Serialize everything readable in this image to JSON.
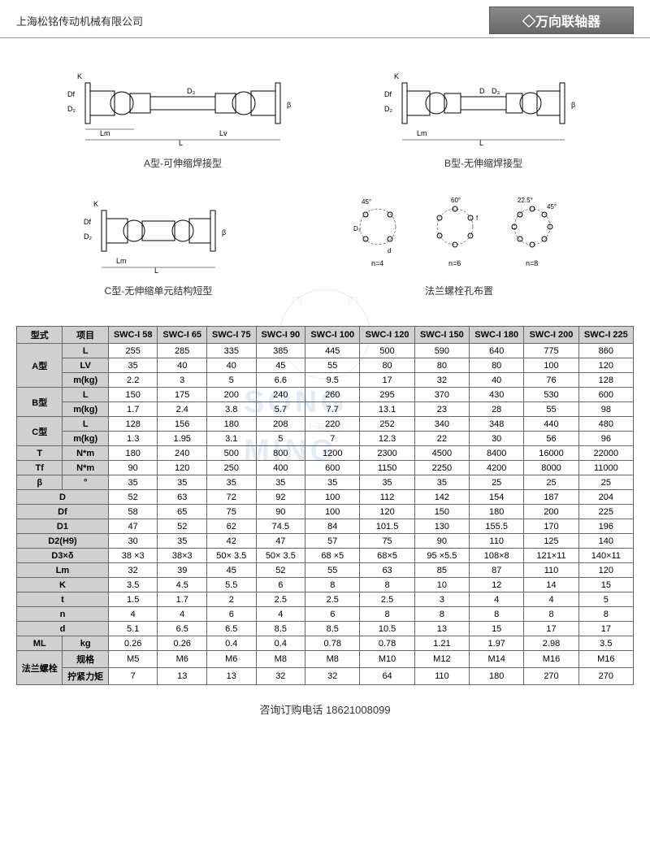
{
  "header": {
    "company": "上海松铭传动机械有限公司",
    "title": "◇万向联轴器"
  },
  "diagrams": {
    "typeA_label": "A型-可伸缩焊接型",
    "typeB_label": "B型-无伸缩焊接型",
    "typeC_label": "C型-无伸缩单元结构短型",
    "bolt_label": "法兰螺栓孔布置",
    "bolt_n4": "n=4",
    "bolt_n6": "n=6",
    "bolt_n8": "n=8",
    "angle_45": "45°",
    "angle_60": "60°",
    "angle_225": "22.5°",
    "dim_K": "K",
    "dim_Df": "Df",
    "dim_D2": "D₂",
    "dim_Lm": "Lm",
    "dim_L": "L",
    "dim_Lv": "Lv",
    "dim_D": "D",
    "dim_D3": "D₃",
    "dim_D1": "D₁",
    "dim_d": "d",
    "dim_beta": "β"
  },
  "watermark": {
    "main": "SONG",
    "main2": "MING",
    "sub": "上海松铭"
  },
  "table": {
    "header_row1": [
      "型式",
      "项目",
      "SWC-I 58",
      "SWC-I 65",
      "SWC-I 75",
      "SWC-I 90",
      "SWC-I 100",
      "SWC-I 120",
      "SWC-I 150",
      "SWC-I 180",
      "SWC-I 200",
      "SWC-I 225"
    ],
    "rows": [
      {
        "group": "A型",
        "param": "L",
        "vals": [
          "255",
          "285",
          "335",
          "385",
          "445",
          "500",
          "590",
          "640",
          "775",
          "860"
        ]
      },
      {
        "group": "",
        "param": "LV",
        "vals": [
          "35",
          "40",
          "40",
          "45",
          "55",
          "80",
          "80",
          "80",
          "100",
          "120"
        ]
      },
      {
        "group": "",
        "param": "m(kg)",
        "vals": [
          "2.2",
          "3",
          "5",
          "6.6",
          "9.5",
          "17",
          "32",
          "40",
          "76",
          "128"
        ]
      },
      {
        "group": "B型",
        "param": "L",
        "vals": [
          "150",
          "175",
          "200",
          "240",
          "260",
          "295",
          "370",
          "430",
          "530",
          "600"
        ]
      },
      {
        "group": "",
        "param": "m(kg)",
        "vals": [
          "1.7",
          "2.4",
          "3.8",
          "5.7",
          "7.7",
          "13.1",
          "23",
          "28",
          "55",
          "98"
        ]
      },
      {
        "group": "C型",
        "param": "L",
        "vals": [
          "128",
          "156",
          "180",
          "208",
          "220",
          "252",
          "340",
          "348",
          "440",
          "480"
        ]
      },
      {
        "group": "",
        "param": "m(kg)",
        "vals": [
          "1.3",
          "1.95",
          "3.1",
          "5",
          "7",
          "12.3",
          "22",
          "30",
          "56",
          "96"
        ]
      },
      {
        "group": "T",
        "param": "N*m",
        "vals": [
          "180",
          "240",
          "500",
          "800",
          "1200",
          "2300",
          "4500",
          "8400",
          "16000",
          "22000"
        ]
      },
      {
        "group": "Tf",
        "param": "N*m",
        "vals": [
          "90",
          "120",
          "250",
          "400",
          "600",
          "1150",
          "2250",
          "4200",
          "8000",
          "11000"
        ]
      },
      {
        "group": "β",
        "param": "°",
        "vals": [
          "35",
          "35",
          "35",
          "35",
          "35",
          "35",
          "35",
          "25",
          "25",
          "25"
        ]
      },
      {
        "group2": "D",
        "vals": [
          "52",
          "63",
          "72",
          "92",
          "100",
          "112",
          "142",
          "154",
          "187",
          "204"
        ]
      },
      {
        "group2": "Df",
        "vals": [
          "58",
          "65",
          "75",
          "90",
          "100",
          "120",
          "150",
          "180",
          "200",
          "225"
        ]
      },
      {
        "group2": "D1",
        "vals": [
          "47",
          "52",
          "62",
          "74.5",
          "84",
          "101.5",
          "130",
          "155.5",
          "170",
          "196"
        ]
      },
      {
        "group2": "D2(H9)",
        "vals": [
          "30",
          "35",
          "42",
          "47",
          "57",
          "75",
          "90",
          "110",
          "125",
          "140"
        ]
      },
      {
        "group2": "D3×δ",
        "vals": [
          "38 ×3",
          "38×3",
          "50× 3.5",
          "50× 3.5",
          "68 ×5",
          "68×5",
          "95 ×5.5",
          "108×8",
          "121×11",
          "140×11"
        ]
      },
      {
        "group2": "Lm",
        "vals": [
          "32",
          "39",
          "45",
          "52",
          "55",
          "63",
          "85",
          "87",
          "110",
          "120"
        ]
      },
      {
        "group2": "K",
        "vals": [
          "3.5",
          "4.5",
          "5.5",
          "6",
          "8",
          "8",
          "10",
          "12",
          "14",
          "15"
        ]
      },
      {
        "group2": "t",
        "vals": [
          "1.5",
          "1.7",
          "2",
          "2.5",
          "2.5",
          "2.5",
          "3",
          "4",
          "4",
          "5"
        ]
      },
      {
        "group2": "n",
        "vals": [
          "4",
          "4",
          "6",
          "4",
          "6",
          "8",
          "8",
          "8",
          "8",
          "8"
        ]
      },
      {
        "group2": "d",
        "vals": [
          "5.1",
          "6.5",
          "6.5",
          "8.5",
          "8.5",
          "10.5",
          "13",
          "15",
          "17",
          "17"
        ]
      },
      {
        "group": "ML",
        "param": "kg",
        "vals": [
          "0.26",
          "0.26",
          "0.4",
          "0.4",
          "0.78",
          "0.78",
          "1.21",
          "1.97",
          "2.98",
          "3.5"
        ]
      },
      {
        "group": "法兰螺栓",
        "param": "规格",
        "vals": [
          "M5",
          "M6",
          "M6",
          "M8",
          "M8",
          "M10",
          "M12",
          "M14",
          "M16",
          "M16"
        ]
      },
      {
        "group": "",
        "param": "拧紧力矩",
        "vals": [
          "7",
          "13",
          "13",
          "32",
          "32",
          "64",
          "110",
          "180",
          "270",
          "270"
        ]
      }
    ]
  },
  "footer": {
    "text": "咨询订购电话  18621008099"
  },
  "colors": {
    "header_bg": "#d0d0d0",
    "border": "#666666",
    "badge_bg": "#787878",
    "text": "#333333"
  }
}
